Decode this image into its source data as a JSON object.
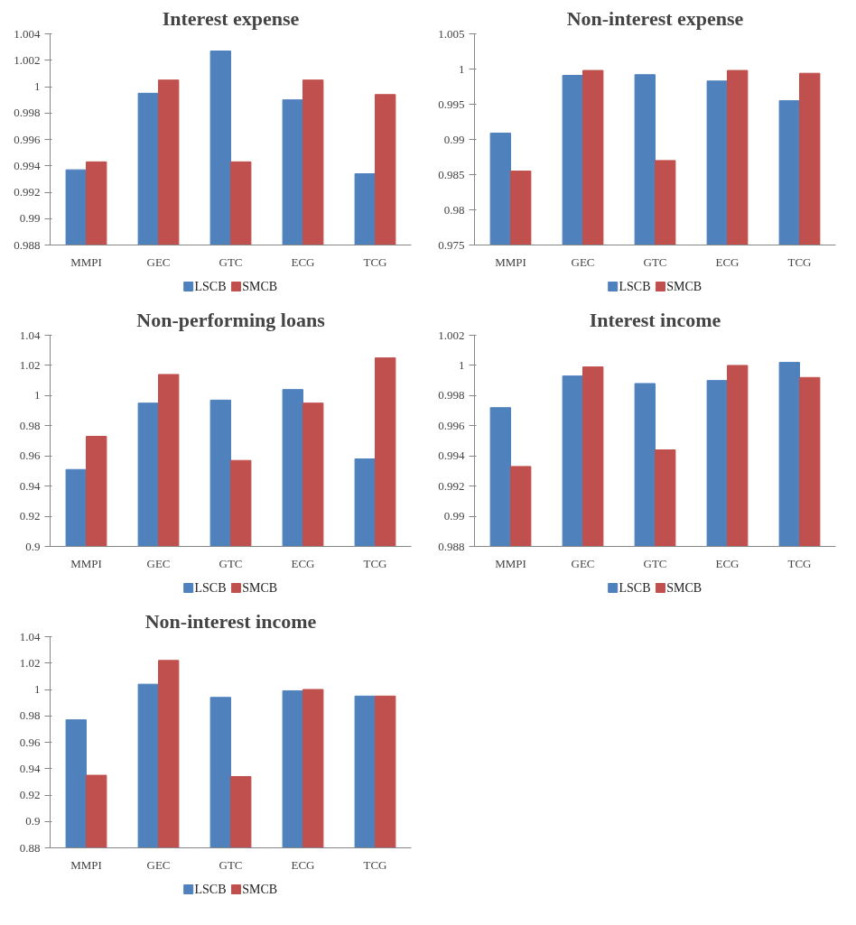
{
  "chart_data": [
    {
      "type": "bar",
      "title": "Interest expense",
      "categories": [
        "MMPI",
        "GEC",
        "GTC",
        "ECG",
        "TCG"
      ],
      "ylim": [
        0.988,
        1.004
      ],
      "yticks": [
        0.988,
        0.99,
        0.992,
        0.994,
        0.996,
        0.998,
        1,
        1.002,
        1.004
      ],
      "grid": false,
      "legend": "bottom",
      "series": [
        {
          "name": "LSCB",
          "color": "#4f81bd",
          "values": [
            0.9937,
            0.9995,
            1.0027,
            0.999,
            0.9934
          ]
        },
        {
          "name": "SMCB",
          "color": "#c0504d",
          "values": [
            0.9943,
            1.0005,
            0.9943,
            1.0005,
            0.9994
          ]
        }
      ]
    },
    {
      "type": "bar",
      "title": "Non-interest expense",
      "categories": [
        "MMPI",
        "GEC",
        "GTC",
        "ECG",
        "TCG"
      ],
      "ylim": [
        0.975,
        1.005
      ],
      "yticks": [
        0.975,
        0.98,
        0.985,
        0.99,
        0.995,
        1,
        1.005
      ],
      "grid": false,
      "legend": "bottom",
      "series": [
        {
          "name": "LSCB",
          "color": "#4f81bd",
          "values": [
            0.9909,
            0.9991,
            0.9992,
            0.9983,
            0.9955
          ]
        },
        {
          "name": "SMCB",
          "color": "#c0504d",
          "values": [
            0.9855,
            0.9998,
            0.987,
            0.9998,
            0.9994
          ]
        }
      ]
    },
    {
      "type": "bar",
      "title": "Non-performing loans",
      "categories": [
        "MMPI",
        "GEC",
        "GTC",
        "ECG",
        "TCG"
      ],
      "ylim": [
        0.9,
        1.04
      ],
      "yticks": [
        0.9,
        0.92,
        0.94,
        0.96,
        0.98,
        1,
        1.02,
        1.04
      ],
      "grid": false,
      "legend": "bottom",
      "series": [
        {
          "name": "LSCB",
          "color": "#4f81bd",
          "values": [
            0.951,
            0.995,
            0.997,
            1.004,
            0.958
          ]
        },
        {
          "name": "SMCB",
          "color": "#c0504d",
          "values": [
            0.973,
            1.014,
            0.957,
            0.995,
            1.025
          ]
        }
      ]
    },
    {
      "type": "bar",
      "title": "Interest income",
      "categories": [
        "MMPI",
        "GEC",
        "GTC",
        "ECG",
        "TCG"
      ],
      "ylim": [
        0.988,
        1.002
      ],
      "yticks": [
        0.988,
        0.99,
        0.992,
        0.994,
        0.996,
        0.998,
        1,
        1.002
      ],
      "grid": false,
      "legend": "bottom",
      "series": [
        {
          "name": "LSCB",
          "color": "#4f81bd",
          "values": [
            0.9972,
            0.9993,
            0.9988,
            0.999,
            1.0002
          ]
        },
        {
          "name": "SMCB",
          "color": "#c0504d",
          "values": [
            0.9933,
            0.9999,
            0.9944,
            1.0,
            0.9992
          ]
        }
      ]
    },
    {
      "type": "bar",
      "title": "Non-interest income",
      "categories": [
        "MMPI",
        "GEC",
        "GTC",
        "ECG",
        "TCG"
      ],
      "ylim": [
        0.88,
        1.04
      ],
      "yticks": [
        0.88,
        0.9,
        0.92,
        0.94,
        0.96,
        0.98,
        1,
        1.02,
        1.04
      ],
      "grid": false,
      "legend": "bottom",
      "series": [
        {
          "name": "LSCB",
          "color": "#4f81bd",
          "values": [
            0.977,
            1.004,
            0.994,
            0.999,
            0.995
          ]
        },
        {
          "name": "SMCB",
          "color": "#c0504d",
          "values": [
            0.935,
            1.022,
            0.934,
            1.0,
            0.995
          ]
        }
      ]
    }
  ]
}
